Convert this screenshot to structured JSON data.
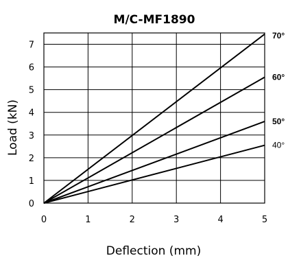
{
  "chart_data": {
    "type": "line",
    "title": "M/C-MF1890",
    "xlabel": "Deflection (mm)",
    "ylabel": "Load (kN)",
    "xlim": [
      0,
      5
    ],
    "ylim": [
      0,
      7.5
    ],
    "xticks": [
      "0",
      "1",
      "2",
      "3",
      "4",
      "5"
    ],
    "yticks": [
      "0",
      "1",
      "2",
      "3",
      "4",
      "5",
      "6",
      "7"
    ],
    "grid": true,
    "series": [
      {
        "name": "70°",
        "bold": true,
        "x": [
          0,
          5
        ],
        "y": [
          0,
          7.45
        ]
      },
      {
        "name": "60°",
        "bold": true,
        "x": [
          0,
          5
        ],
        "y": [
          0,
          5.55
        ]
      },
      {
        "name": "50°",
        "bold": true,
        "x": [
          0,
          5
        ],
        "y": [
          0,
          3.6
        ]
      },
      {
        "name": "40°",
        "bold": false,
        "x": [
          0,
          5
        ],
        "y": [
          0,
          2.55
        ]
      }
    ]
  }
}
